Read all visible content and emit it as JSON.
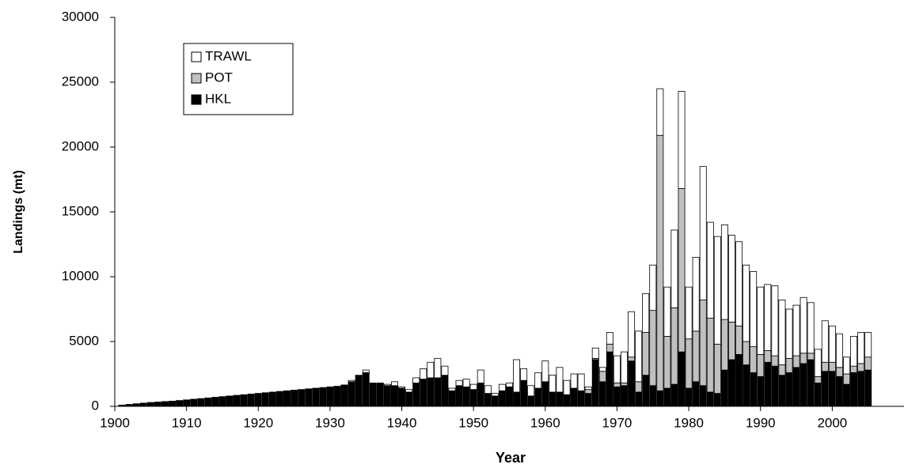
{
  "chart_data": {
    "type": "stacked_bar",
    "x_label": "Year",
    "y_label": "Landings (mt)",
    "xlim": [
      1900,
      2010
    ],
    "xticks": [
      1900,
      1910,
      1920,
      1930,
      1940,
      1950,
      1960,
      1970,
      1980,
      1990,
      2000
    ],
    "ylim": [
      0,
      30000
    ],
    "yticks": [
      0,
      5000,
      10000,
      15000,
      20000,
      25000,
      30000
    ],
    "legend": "upper-left",
    "x": [
      1901,
      1902,
      1903,
      1904,
      1905,
      1906,
      1907,
      1908,
      1909,
      1910,
      1911,
      1912,
      1913,
      1914,
      1915,
      1916,
      1917,
      1918,
      1919,
      1920,
      1921,
      1922,
      1923,
      1924,
      1925,
      1926,
      1927,
      1928,
      1929,
      1930,
      1931,
      1932,
      1933,
      1934,
      1935,
      1936,
      1937,
      1938,
      1939,
      1940,
      1941,
      1942,
      1943,
      1944,
      1945,
      1946,
      1947,
      1948,
      1949,
      1950,
      1951,
      1952,
      1953,
      1954,
      1955,
      1956,
      1957,
      1958,
      1959,
      1960,
      1961,
      1962,
      1963,
      1964,
      1965,
      1966,
      1967,
      1968,
      1969,
      1970,
      1971,
      1972,
      1973,
      1974,
      1975,
      1976,
      1977,
      1978,
      1979,
      1980,
      1981,
      1982,
      1983,
      1984,
      1985,
      1986,
      1987,
      1988,
      1989,
      1990,
      1991,
      1992,
      1993,
      1994,
      1995,
      1996,
      1997,
      1998,
      1999,
      2000,
      2001,
      2002,
      2003,
      2004,
      2005
    ],
    "series": [
      {
        "name": "HKL",
        "color": "#000000",
        "values": [
          100,
          150,
          200,
          250,
          300,
          330,
          370,
          400,
          450,
          500,
          550,
          600,
          650,
          700,
          750,
          800,
          850,
          900,
          950,
          1000,
          1050,
          1100,
          1150,
          1200,
          1250,
          1300,
          1350,
          1400,
          1450,
          1500,
          1550,
          1650,
          1900,
          2400,
          2600,
          1800,
          1800,
          1600,
          1600,
          1400,
          1100,
          1800,
          2100,
          2200,
          2200,
          2400,
          1200,
          1600,
          1500,
          1300,
          1800,
          1000,
          800,
          1200,
          1500,
          1100,
          2000,
          800,
          1400,
          1900,
          1100,
          1100,
          900,
          1400,
          1200,
          1000,
          3600,
          1900,
          4200,
          1500,
          1600,
          3500,
          1100,
          2400,
          1600,
          1200,
          1400,
          1700,
          4200,
          1400,
          1900,
          1600,
          1100,
          1000,
          2800,
          3600,
          4000,
          3200,
          2600,
          2300,
          3400,
          3100,
          2400,
          2600,
          3000,
          3300,
          3600,
          1800,
          2700,
          2700,
          2300,
          1700,
          2600,
          2700,
          2800
        ]
      },
      {
        "name": "POT",
        "color": "#c0c0c0",
        "values": [
          0,
          0,
          0,
          0,
          0,
          0,
          0,
          0,
          0,
          0,
          0,
          0,
          0,
          0,
          0,
          0,
          0,
          0,
          0,
          0,
          0,
          0,
          0,
          0,
          0,
          0,
          0,
          0,
          0,
          0,
          0,
          0,
          0,
          0,
          0,
          0,
          0,
          0,
          0,
          0,
          0,
          0,
          0,
          0,
          0,
          0,
          0,
          0,
          0,
          0,
          0,
          0,
          0,
          0,
          0,
          0,
          0,
          0,
          0,
          0,
          0,
          0,
          0,
          0,
          0,
          300,
          100,
          800,
          600,
          300,
          200,
          300,
          800,
          3300,
          5800,
          19700,
          4000,
          5900,
          12600,
          3800,
          3900,
          6600,
          5700,
          3800,
          3900,
          2900,
          2200,
          1800,
          2000,
          1700,
          900,
          800,
          800,
          1100,
          900,
          800,
          500,
          500,
          700,
          700,
          700,
          800,
          500,
          600,
          1000
        ]
      },
      {
        "name": "TRAWL",
        "color": "#ffffff",
        "values": [
          0,
          0,
          0,
          0,
          0,
          0,
          0,
          0,
          0,
          0,
          0,
          0,
          0,
          0,
          0,
          0,
          0,
          0,
          0,
          0,
          0,
          0,
          0,
          0,
          0,
          0,
          0,
          0,
          0,
          0,
          0,
          0,
          100,
          0,
          200,
          0,
          0,
          100,
          300,
          100,
          200,
          400,
          800,
          1200,
          1500,
          700,
          200,
          400,
          600,
          400,
          1000,
          600,
          200,
          500,
          300,
          2500,
          900,
          800,
          1200,
          1600,
          1300,
          1900,
          1100,
          1100,
          1300,
          200,
          800,
          300,
          900,
          2100,
          2400,
          3500,
          3900,
          3000,
          3500,
          3600,
          3800,
          6000,
          7500,
          4000,
          5700,
          10300,
          7400,
          8300,
          7300,
          6700,
          6500,
          5900,
          5800,
          5200,
          5100,
          5400,
          5000,
          3800,
          3900,
          4300,
          3900,
          2100,
          3200,
          2800,
          2600,
          1300,
          2300,
          2400,
          1900
        ]
      }
    ]
  }
}
